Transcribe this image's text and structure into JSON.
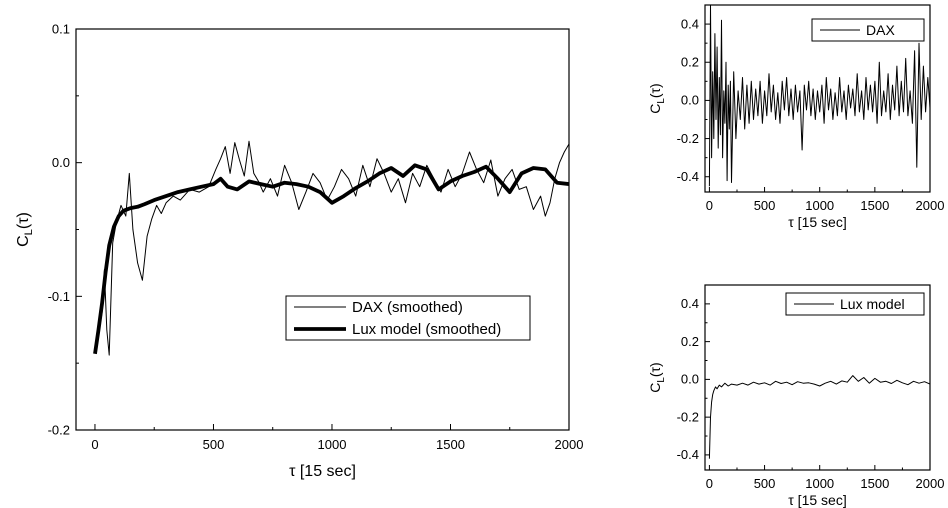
{
  "chart_data": [
    {
      "type": "line",
      "xlabel": "τ [15 sec]",
      "ylabel": "C_L(τ)",
      "xlim": [
        -80,
        2000
      ],
      "ylim": [
        -0.2,
        0.1
      ],
      "xticks": [
        "0",
        "500",
        "1000",
        "1500",
        "2000"
      ],
      "yticks": [
        "-0.2",
        "-0.1",
        "0.0",
        "0.1"
      ],
      "grid": false,
      "legend_position": "lower-right",
      "series": [
        {
          "name": "DAX (smoothed)",
          "x": [
            0,
            15,
            30,
            40,
            50,
            60,
            75,
            90,
            110,
            130,
            145,
            160,
            180,
            200,
            220,
            240,
            260,
            280,
            300,
            330,
            360,
            400,
            440,
            480,
            510,
            530,
            550,
            570,
            590,
            610,
            630,
            650,
            670,
            690,
            710,
            740,
            770,
            800,
            830,
            860,
            890,
            920,
            950,
            980,
            1010,
            1040,
            1070,
            1100,
            1130,
            1160,
            1190,
            1220,
            1250,
            1280,
            1310,
            1340,
            1370,
            1400,
            1430,
            1460,
            1490,
            1520,
            1550,
            1580,
            1610,
            1640,
            1670,
            1700,
            1730,
            1760,
            1790,
            1820,
            1850,
            1880,
            1900,
            1920,
            1940,
            1960,
            1980,
            2000
          ],
          "y": [
            -0.142,
            -0.128,
            -0.112,
            -0.08,
            -0.125,
            -0.144,
            -0.06,
            -0.045,
            -0.032,
            -0.04,
            -0.008,
            -0.05,
            -0.075,
            -0.088,
            -0.055,
            -0.042,
            -0.032,
            -0.038,
            -0.03,
            -0.025,
            -0.028,
            -0.02,
            -0.022,
            -0.018,
            -0.005,
            0.003,
            0.012,
            -0.008,
            0.015,
            0.002,
            -0.01,
            0.016,
            -0.008,
            -0.014,
            -0.022,
            -0.012,
            -0.025,
            -0.002,
            -0.015,
            -0.035,
            -0.022,
            -0.008,
            -0.015,
            -0.028,
            -0.018,
            -0.005,
            -0.012,
            -0.025,
            -0.002,
            -0.018,
            0.003,
            -0.008,
            -0.022,
            -0.012,
            -0.03,
            -0.008,
            -0.018,
            -0.002,
            -0.012,
            -0.022,
            -0.005,
            -0.018,
            -0.008,
            0.008,
            -0.005,
            -0.015,
            0.002,
            -0.025,
            -0.012,
            -0.005,
            -0.02,
            -0.018,
            -0.035,
            -0.025,
            -0.04,
            -0.03,
            -0.012,
            0.0,
            0.008,
            0.014
          ]
        },
        {
          "name": "Lux model (smoothed)",
          "x": [
            0,
            15,
            30,
            45,
            60,
            80,
            100,
            120,
            150,
            180,
            210,
            250,
            300,
            350,
            400,
            450,
            500,
            530,
            560,
            600,
            650,
            700,
            750,
            800,
            850,
            900,
            950,
            1000,
            1050,
            1100,
            1150,
            1200,
            1250,
            1300,
            1350,
            1400,
            1450,
            1500,
            1550,
            1600,
            1650,
            1700,
            1750,
            1800,
            1850,
            1900,
            1950,
            2000
          ],
          "y": [
            -0.143,
            -0.125,
            -0.105,
            -0.082,
            -0.062,
            -0.048,
            -0.04,
            -0.036,
            -0.034,
            -0.033,
            -0.031,
            -0.028,
            -0.025,
            -0.022,
            -0.02,
            -0.018,
            -0.016,
            -0.012,
            -0.018,
            -0.02,
            -0.014,
            -0.016,
            -0.018,
            -0.015,
            -0.016,
            -0.018,
            -0.022,
            -0.03,
            -0.025,
            -0.019,
            -0.014,
            -0.008,
            -0.004,
            -0.01,
            -0.002,
            -0.005,
            -0.02,
            -0.014,
            -0.01,
            -0.007,
            -0.003,
            -0.012,
            -0.022,
            -0.008,
            -0.004,
            -0.005,
            -0.015,
            -0.016
          ]
        }
      ]
    },
    {
      "type": "line",
      "xlabel": "τ [15 sec]",
      "ylabel": "C_L(τ)",
      "xlim": [
        -40,
        2000
      ],
      "ylim": [
        -0.48,
        0.5
      ],
      "xticks": [
        "0",
        "500",
        "1000",
        "1500",
        "2000"
      ],
      "yticks": [
        "-0.4",
        "-0.2",
        "0.0",
        "0.2",
        "0.4"
      ],
      "grid": false,
      "legend_position": "top-right",
      "series": [
        {
          "name": "DAX",
          "x": [
            0,
            10,
            20,
            30,
            40,
            50,
            60,
            70,
            80,
            90,
            100,
            110,
            120,
            130,
            140,
            150,
            160,
            170,
            180,
            190,
            200,
            220,
            240,
            260,
            280,
            300,
            320,
            340,
            360,
            380,
            400,
            420,
            440,
            460,
            480,
            500,
            520,
            540,
            560,
            580,
            600,
            620,
            640,
            660,
            680,
            700,
            720,
            740,
            760,
            780,
            800,
            820,
            840,
            860,
            880,
            900,
            920,
            940,
            960,
            980,
            1000,
            1020,
            1040,
            1060,
            1080,
            1100,
            1120,
            1140,
            1160,
            1180,
            1200,
            1220,
            1240,
            1260,
            1280,
            1300,
            1320,
            1340,
            1360,
            1380,
            1400,
            1420,
            1440,
            1460,
            1480,
            1500,
            1520,
            1540,
            1560,
            1580,
            1600,
            1620,
            1640,
            1660,
            1680,
            1700,
            1720,
            1740,
            1760,
            1780,
            1800,
            1820,
            1840,
            1860,
            1880,
            1900,
            1920,
            1940,
            1960,
            1980,
            2000
          ],
          "y": [
            -0.45,
            0.5,
            -0.3,
            0.15,
            -0.2,
            0.35,
            -0.1,
            0.28,
            -0.25,
            0.12,
            -0.18,
            0.42,
            -0.3,
            0.05,
            -0.12,
            0.2,
            -0.42,
            0.08,
            -0.15,
            0.1,
            -0.43,
            0.15,
            -0.2,
            0.05,
            -0.1,
            0.12,
            -0.15,
            0.08,
            -0.12,
            0.1,
            -0.1,
            0.06,
            -0.08,
            0.1,
            -0.12,
            0.05,
            -0.08,
            0.14,
            -0.06,
            0.08,
            -0.1,
            0.04,
            -0.12,
            0.1,
            -0.05,
            0.12,
            -0.08,
            0.06,
            -0.1,
            0.08,
            -0.06,
            0.05,
            -0.26,
            0.08,
            -0.05,
            0.1,
            -0.08,
            0.06,
            -0.1,
            0.05,
            -0.06,
            0.08,
            -0.12,
            0.12,
            -0.05,
            0.06,
            -0.1,
            0.04,
            -0.08,
            0.12,
            -0.06,
            0.05,
            -0.1,
            0.08,
            -0.04,
            0.06,
            -0.08,
            0.14,
            -0.06,
            0.05,
            -0.1,
            0.12,
            -0.05,
            0.08,
            -0.06,
            0.1,
            -0.12,
            0.2,
            -0.08,
            0.05,
            -0.06,
            0.14,
            -0.1,
            0.08,
            -0.05,
            0.18,
            -0.08,
            0.1,
            -0.06,
            0.22,
            -0.08,
            0.05,
            -0.12,
            0.26,
            -0.35,
            0.3,
            -0.1,
            0.18,
            -0.06,
            0.12,
            -0.04
          ]
        }
      ]
    },
    {
      "type": "line",
      "xlabel": "τ [15 sec]",
      "ylabel": "C_L(τ)",
      "xlim": [
        -40,
        2000
      ],
      "ylim": [
        -0.48,
        0.5
      ],
      "xticks": [
        "0",
        "500",
        "1000",
        "1500",
        "2000"
      ],
      "yticks": [
        "-0.4",
        "-0.2",
        "0.0",
        "0.2",
        "0.4"
      ],
      "grid": false,
      "legend_position": "top-right",
      "series": [
        {
          "name": "Lux model",
          "x": [
            0,
            10,
            20,
            30,
            40,
            55,
            70,
            90,
            110,
            140,
            170,
            200,
            250,
            300,
            350,
            400,
            450,
            500,
            550,
            600,
            650,
            700,
            750,
            800,
            850,
            900,
            950,
            1000,
            1050,
            1100,
            1150,
            1200,
            1250,
            1300,
            1350,
            1400,
            1450,
            1500,
            1550,
            1600,
            1650,
            1700,
            1750,
            1800,
            1850,
            1900,
            1950,
            2000
          ],
          "y": [
            -0.42,
            -0.2,
            -0.12,
            -0.08,
            -0.06,
            -0.04,
            -0.05,
            -0.03,
            -0.04,
            -0.02,
            -0.035,
            -0.025,
            -0.03,
            -0.02,
            -0.03,
            -0.015,
            -0.025,
            -0.018,
            -0.03,
            -0.01,
            -0.022,
            -0.015,
            -0.028,
            -0.012,
            -0.02,
            -0.018,
            -0.025,
            -0.035,
            -0.02,
            -0.01,
            -0.025,
            -0.008,
            -0.015,
            0.02,
            -0.01,
            0.01,
            -0.02,
            0.005,
            -0.015,
            -0.01,
            -0.022,
            -0.005,
            -0.018,
            -0.028,
            -0.01,
            -0.02,
            -0.012,
            -0.025
          ]
        }
      ]
    }
  ]
}
